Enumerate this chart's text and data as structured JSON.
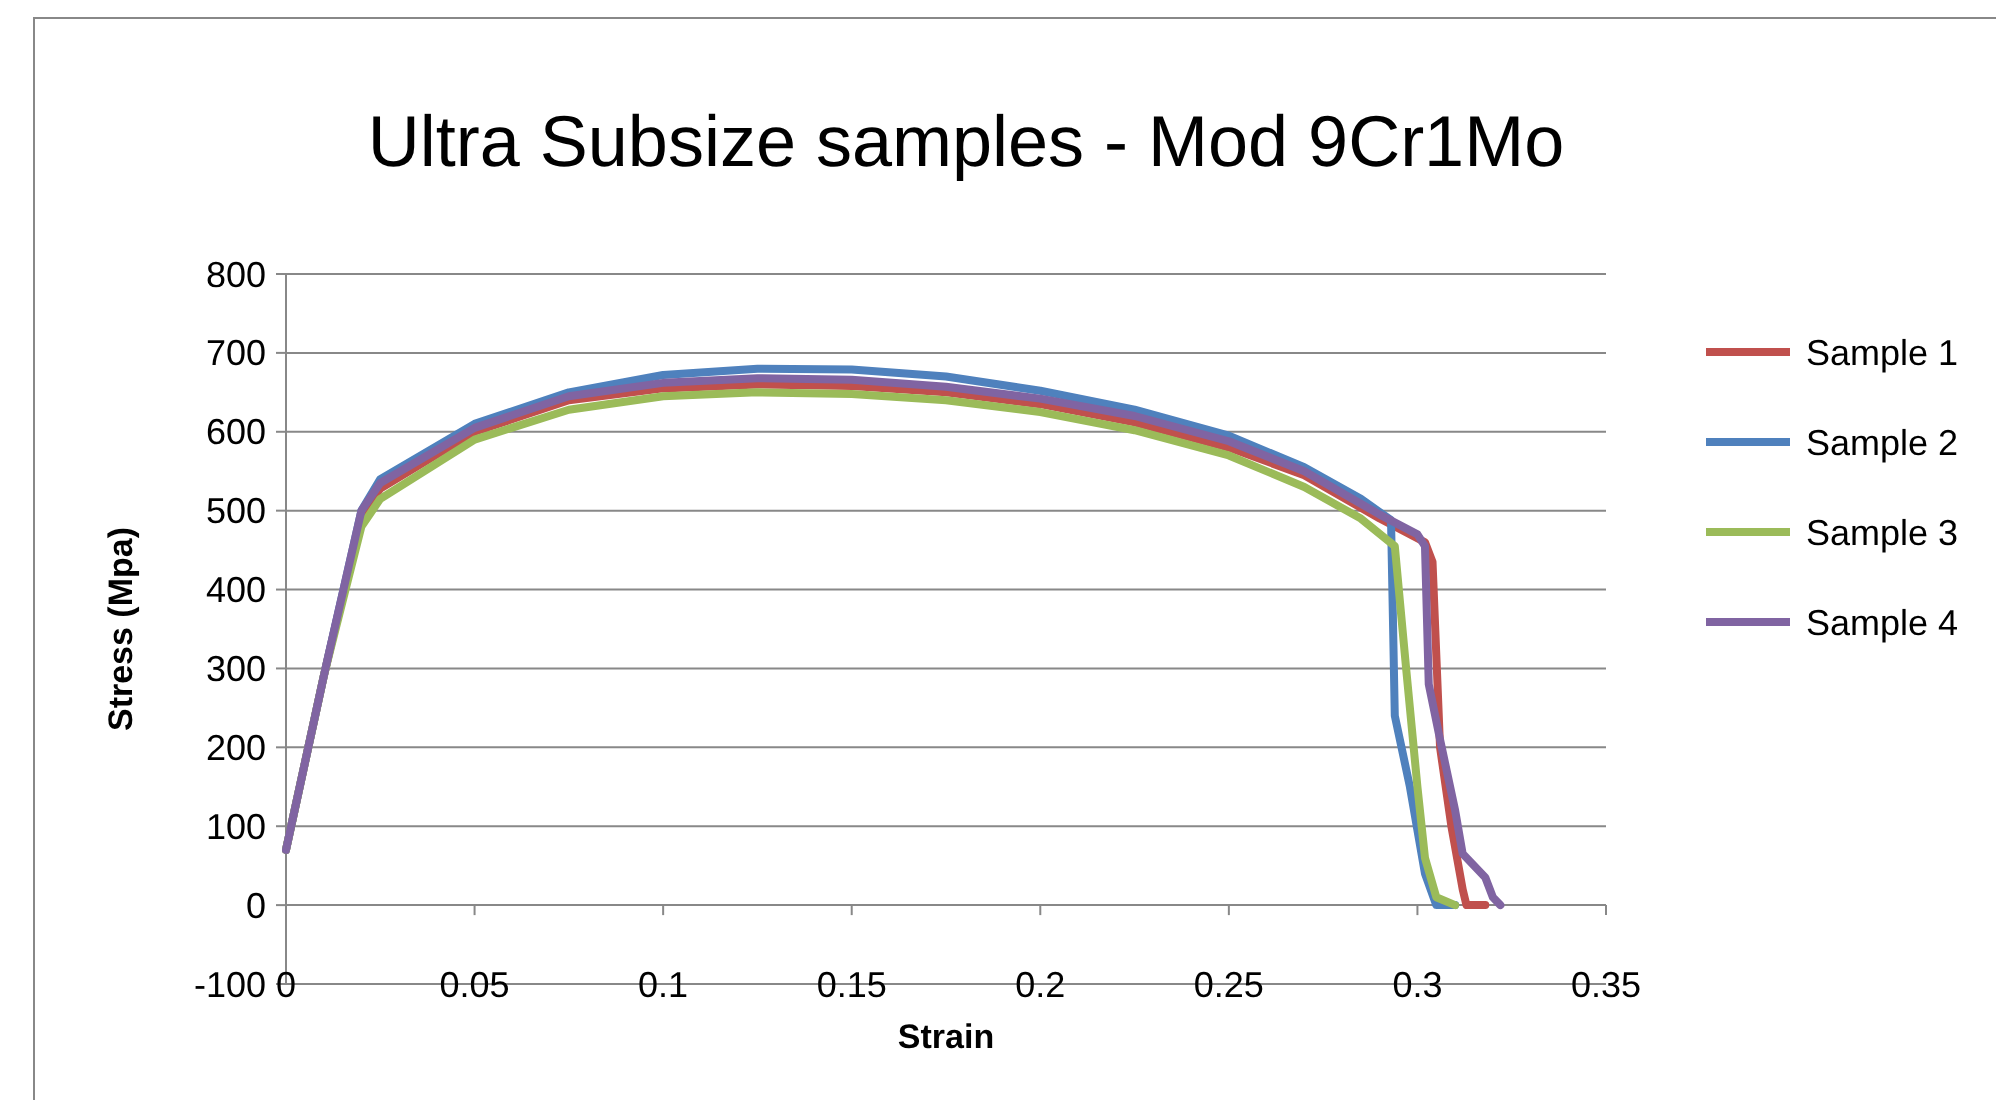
{
  "chart_data": {
    "type": "line",
    "title": "Ultra Subsize samples - Mod 9Cr1Mo",
    "xlabel": "Strain",
    "ylabel": "Stress (Mpa)",
    "xlim": [
      0,
      0.35
    ],
    "xticks": [
      0,
      0.05,
      0.1,
      0.15,
      0.2,
      0.25,
      0.3,
      0.35
    ],
    "ylim": [
      -100,
      800
    ],
    "yticks": [
      -100,
      0,
      100,
      200,
      300,
      400,
      500,
      600,
      700,
      800
    ],
    "grid": "y",
    "legend": "right",
    "marker": "none",
    "line_style": "solid",
    "series": [
      {
        "name": "Sample 1",
        "color": "#c0504d",
        "x": [
          0,
          0.01,
          0.02,
          0.025,
          0.05,
          0.075,
          0.1,
          0.125,
          0.15,
          0.175,
          0.2,
          0.225,
          0.25,
          0.27,
          0.29,
          0.302,
          0.304,
          0.306,
          0.309,
          0.312,
          0.313,
          0.318
        ],
        "values": [
          70,
          290,
          495,
          528,
          600,
          640,
          655,
          660,
          658,
          650,
          635,
          612,
          580,
          545,
          490,
          460,
          435,
          200,
          100,
          20,
          0,
          0
        ]
      },
      {
        "name": "Sample 2",
        "color": "#4f81bd",
        "x": [
          0,
          0.01,
          0.02,
          0.025,
          0.05,
          0.075,
          0.1,
          0.125,
          0.15,
          0.175,
          0.2,
          0.225,
          0.25,
          0.27,
          0.285,
          0.293,
          0.294,
          0.298,
          0.302,
          0.305,
          0.31
        ],
        "values": [
          70,
          290,
          500,
          540,
          610,
          650,
          672,
          680,
          679,
          670,
          652,
          628,
          595,
          555,
          515,
          488,
          240,
          150,
          40,
          0,
          0
        ]
      },
      {
        "name": "Sample 3",
        "color": "#9bbb59",
        "x": [
          0,
          0.01,
          0.02,
          0.025,
          0.05,
          0.075,
          0.1,
          0.125,
          0.15,
          0.175,
          0.2,
          0.225,
          0.25,
          0.27,
          0.285,
          0.294,
          0.297,
          0.3,
          0.302,
          0.305,
          0.31
        ],
        "values": [
          70,
          290,
          480,
          515,
          590,
          628,
          645,
          650,
          648,
          640,
          625,
          602,
          570,
          530,
          490,
          455,
          300,
          150,
          60,
          10,
          0
        ]
      },
      {
        "name": "Sample 4",
        "color": "#8064a2",
        "x": [
          0,
          0.01,
          0.02,
          0.025,
          0.05,
          0.075,
          0.1,
          0.125,
          0.15,
          0.175,
          0.2,
          0.225,
          0.25,
          0.27,
          0.29,
          0.3,
          0.302,
          0.303,
          0.306,
          0.31,
          0.312,
          0.318,
          0.32,
          0.322
        ],
        "values": [
          70,
          290,
          500,
          535,
          605,
          645,
          662,
          668,
          666,
          657,
          642,
          620,
          588,
          550,
          495,
          470,
          455,
          280,
          210,
          120,
          65,
          35,
          10,
          0
        ]
      }
    ]
  }
}
